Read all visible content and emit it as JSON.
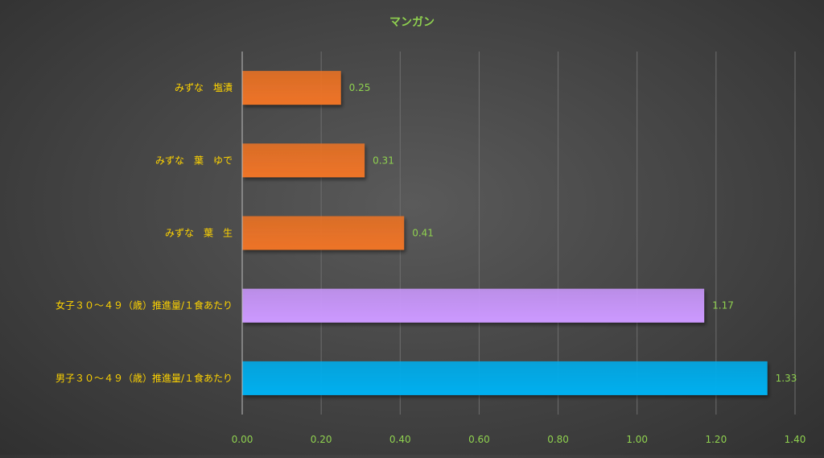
{
  "chart_data": {
    "type": "bar",
    "orientation": "horizontal",
    "title": "マンガン",
    "categories": [
      "みずな　塩漬",
      "みずな　葉　ゆで",
      "みずな　葉　生",
      "女子３０～４９（歳）推進量/１食あたり",
      "男子３０～４９（歳）推進量/１食あたり"
    ],
    "values": [
      0.25,
      0.31,
      0.41,
      1.17,
      1.33
    ],
    "value_labels": [
      "0.25",
      "0.31",
      "0.41",
      "1.17",
      "1.33"
    ],
    "bar_colors": [
      "#ee7426",
      "#ee7426",
      "#ee7426",
      "#cc99ff",
      "#00b0f0"
    ],
    "xlim": [
      0,
      1.4
    ],
    "x_ticks": [
      "0.00",
      "0.20",
      "0.40",
      "0.60",
      "0.80",
      "1.00",
      "1.20",
      "1.40"
    ],
    "grid": "vertical",
    "legend": "none"
  },
  "colors": {
    "title": "#8fd14f",
    "category_text": "#ffd400",
    "value_text": "#8fd14f",
    "tick_text": "#8fd14f",
    "gridline": "#6e6e6e",
    "axis": "#bfbfbf"
  }
}
